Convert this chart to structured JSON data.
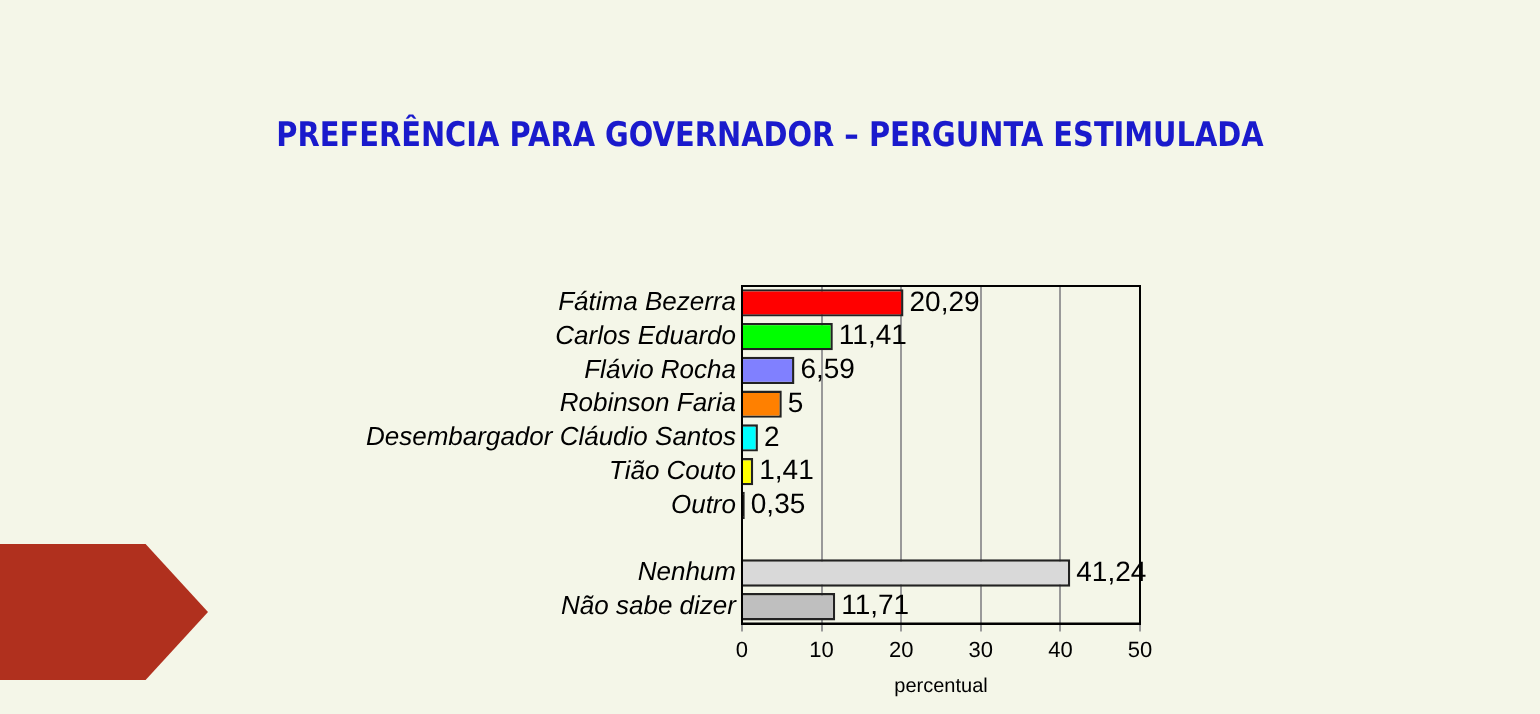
{
  "chart_data": {
    "type": "bar",
    "orientation": "horizontal",
    "title": "PREFERÊNCIA PARA GOVERNADOR – PERGUNTA ESTIMULADA",
    "xlabel": "percentual",
    "categories": [
      "Fátima Bezerra",
      "Carlos Eduardo",
      "Flávio Rocha",
      "Robinson Faria",
      "Desembargador Cláudio Santos",
      "Tião Couto",
      "Outro",
      null,
      "Nenhum",
      "Não sabe dizer"
    ],
    "values": [
      20.29,
      11.41,
      6.59,
      5,
      2,
      1.41,
      0.35,
      null,
      41.24,
      11.71
    ],
    "colors": [
      "#ff0000",
      "#00ff00",
      "#8080ff",
      "#ff8000",
      "#00ffff",
      "#ffff00",
      "#000000",
      "#ffffff",
      "#d9d9d9",
      "#bfbfbf"
    ],
    "value_labels": [
      "20,29",
      "11,41",
      "6,59",
      "5",
      "2",
      "1,41",
      "0,35",
      null,
      "41,24",
      "11,71"
    ],
    "xlim": [
      0,
      50
    ],
    "xticks": [
      0,
      10,
      20,
      30,
      40,
      50
    ],
    "grid": "x"
  }
}
